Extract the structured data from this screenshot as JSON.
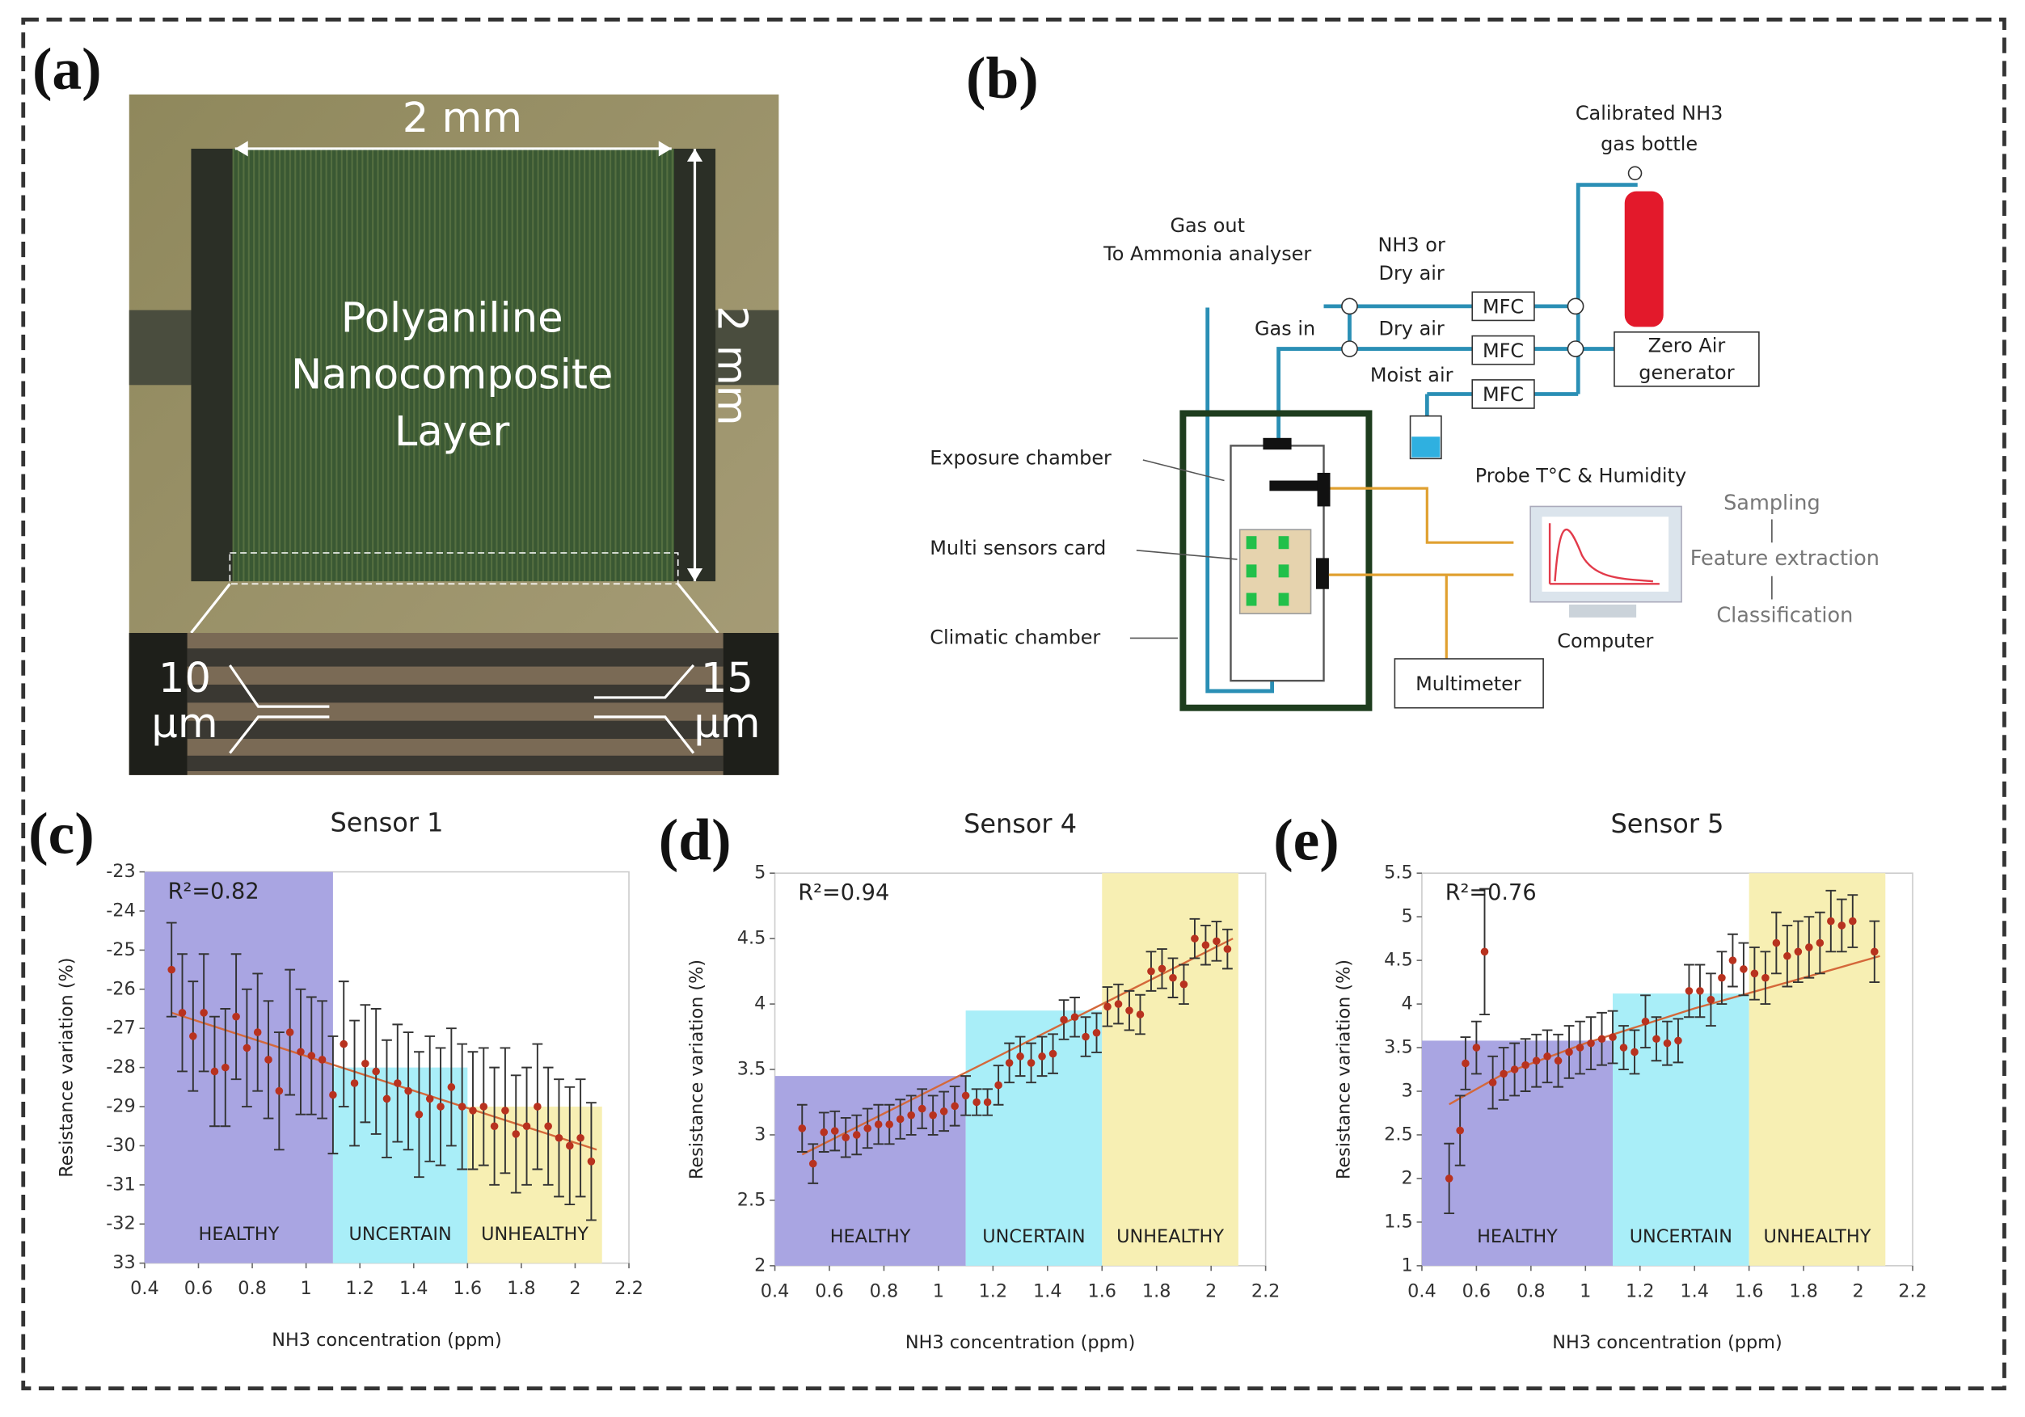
{
  "panel_labels": [
    "(a)",
    "(b)",
    "(c)",
    "(d)",
    "(e)"
  ],
  "photo": {
    "width_label": "2 mm",
    "height_label": "2 mm",
    "layer_label": [
      "Polyaniline",
      "Nanocomposite",
      "Layer"
    ],
    "gap_left": [
      "10",
      "µm"
    ],
    "gap_right": [
      "15",
      "µm"
    ]
  },
  "diagram": {
    "bottle": [
      "Calibrated NH3",
      "gas bottle"
    ],
    "gas_out": [
      "Gas out",
      "To Ammonia analyser"
    ],
    "nh3_dry": [
      "NH3 or",
      "Dry air"
    ],
    "gas_in": "Gas in",
    "dry_air": "Dry air",
    "moist_air": "Moist air",
    "mfc": [
      "MFC",
      "MFC",
      "MFC"
    ],
    "zero_air": [
      "Zero Air",
      "generator"
    ],
    "probe": "Probe T°C & Humidity",
    "exposure": "Exposure chamber",
    "multi": "Multi sensors card",
    "climatic": "Climatic chamber",
    "multimeter": "Multimeter",
    "computer": "Computer",
    "steps": [
      "Sampling",
      "Feature extraction",
      "Classification"
    ]
  },
  "chart_data": [
    {
      "type": "scatter",
      "title": "Sensor 1",
      "x_label": "NH3 concentration (ppm)",
      "y_label": "Resistance variation (%)",
      "annotation": "R²=0.82",
      "xlim": [
        0.4,
        2.2
      ],
      "xticks": [
        0.4,
        0.6,
        0.8,
        1,
        1.2,
        1.4,
        1.6,
        1.8,
        2,
        2.2
      ],
      "ylim": [
        -33,
        -23
      ],
      "yticks": [
        -23,
        -24,
        -25,
        -26,
        -27,
        -28,
        -29,
        -30,
        -31,
        -32,
        {
          "value": -33,
          "label": "33"
        }
      ],
      "regions": [
        {
          "label": "HEALTHY",
          "x": [
            0.4,
            1.1
          ],
          "top": -23,
          "color": "#a9a5e2"
        },
        {
          "label": "UNCERTAIN",
          "x": [
            1.1,
            1.6
          ],
          "top": -28,
          "color": "#a9eef8"
        },
        {
          "label": "UNHEALTHY",
          "x": [
            1.6,
            2.1
          ],
          "top": -29,
          "color": "#f7efb3"
        }
      ],
      "x": [
        0.5,
        0.54,
        0.58,
        0.62,
        0.66,
        0.7,
        0.74,
        0.78,
        0.82,
        0.86,
        0.9,
        0.94,
        0.98,
        1.02,
        1.06,
        1.1,
        1.14,
        1.18,
        1.22,
        1.26,
        1.3,
        1.34,
        1.38,
        1.42,
        1.46,
        1.5,
        1.54,
        1.58,
        1.62,
        1.66,
        1.7,
        1.74,
        1.78,
        1.82,
        1.86,
        1.9,
        1.94,
        1.98,
        2.02,
        2.06
      ],
      "values": [
        -25.5,
        -26.6,
        -27.2,
        -26.6,
        -28.1,
        -28.0,
        -26.7,
        -27.5,
        -27.1,
        -27.8,
        -28.6,
        -27.1,
        -27.6,
        -27.7,
        -27.8,
        -28.7,
        -27.4,
        -28.4,
        -27.9,
        -28.1,
        -28.8,
        -28.4,
        -28.6,
        -29.2,
        -28.8,
        -29.0,
        -28.5,
        -29.0,
        -29.1,
        -29.0,
        -29.5,
        -29.1,
        -29.7,
        -29.5,
        -29.0,
        -29.5,
        -29.8,
        -30.0,
        -29.8,
        -30.4
      ],
      "errors": [
        1.2,
        1.5,
        1.4,
        1.5,
        1.4,
        1.5,
        1.6,
        1.5,
        1.5,
        1.5,
        1.5,
        1.6,
        1.6,
        1.5,
        1.5,
        1.5,
        1.6,
        1.6,
        1.5,
        1.6,
        1.5,
        1.5,
        1.5,
        1.6,
        1.6,
        1.5,
        1.5,
        1.6,
        1.5,
        1.5,
        1.5,
        1.6,
        1.5,
        1.5,
        1.6,
        1.5,
        1.5,
        1.5,
        1.5,
        1.5
      ],
      "color": "#b8321f",
      "error_color": "#333333",
      "trend": {
        "x": [
          0.5,
          2.08
        ],
        "y": [
          -26.6,
          -30.1
        ],
        "color": "#d4683a"
      }
    },
    {
      "type": "scatter",
      "title": "Sensor 4",
      "x_label": "NH3 concentration (ppm)",
      "y_label": "Resistance variation (%)",
      "annotation": "R²=0.94",
      "xlim": [
        0.4,
        2.2
      ],
      "xticks": [
        0.4,
        0.6,
        0.8,
        1,
        1.2,
        1.4,
        1.6,
        1.8,
        2,
        2.2
      ],
      "ylim": [
        2,
        5
      ],
      "yticks": [
        2,
        2.5,
        3,
        3.5,
        4,
        4.5,
        5
      ],
      "regions": [
        {
          "label": "HEALTHY",
          "x": [
            0.4,
            1.1
          ],
          "top": 3.45,
          "color": "#a9a5e2"
        },
        {
          "label": "UNCERTAIN",
          "x": [
            1.1,
            1.6
          ],
          "top": 3.95,
          "color": "#a9eef8"
        },
        {
          "label": "UNHEALTHY",
          "x": [
            1.6,
            2.1
          ],
          "top": 5,
          "color": "#f7efb3"
        }
      ],
      "x": [
        0.5,
        0.54,
        0.58,
        0.62,
        0.66,
        0.7,
        0.74,
        0.78,
        0.82,
        0.86,
        0.9,
        0.94,
        0.98,
        1.02,
        1.06,
        1.1,
        1.14,
        1.18,
        1.22,
        1.26,
        1.3,
        1.34,
        1.38,
        1.42,
        1.46,
        1.5,
        1.54,
        1.58,
        1.62,
        1.66,
        1.7,
        1.74,
        1.78,
        1.82,
        1.86,
        1.9,
        1.94,
        1.98,
        2.02,
        2.06
      ],
      "values": [
        3.05,
        2.78,
        3.02,
        3.03,
        2.98,
        3.0,
        3.05,
        3.08,
        3.08,
        3.12,
        3.15,
        3.2,
        3.15,
        3.18,
        3.22,
        3.3,
        3.25,
        3.25,
        3.38,
        3.55,
        3.6,
        3.55,
        3.6,
        3.62,
        3.88,
        3.9,
        3.75,
        3.78,
        3.98,
        4.0,
        3.95,
        3.92,
        4.25,
        4.27,
        4.2,
        4.15,
        4.5,
        4.45,
        4.48,
        4.42
      ],
      "errors": [
        0.18,
        0.15,
        0.15,
        0.15,
        0.15,
        0.15,
        0.15,
        0.15,
        0.15,
        0.15,
        0.15,
        0.15,
        0.15,
        0.15,
        0.15,
        0.15,
        0.1,
        0.1,
        0.15,
        0.15,
        0.15,
        0.15,
        0.15,
        0.15,
        0.15,
        0.15,
        0.15,
        0.15,
        0.15,
        0.15,
        0.15,
        0.15,
        0.15,
        0.15,
        0.15,
        0.15,
        0.15,
        0.15,
        0.15,
        0.15
      ],
      "color": "#b8321f",
      "error_color": "#333333",
      "trend": {
        "x": [
          0.5,
          2.08
        ],
        "y": [
          2.85,
          4.5
        ],
        "color": "#d4683a"
      }
    },
    {
      "type": "scatter",
      "title": "Sensor 5",
      "x_label": "NH3 concentration (ppm)",
      "y_label": "Resistance variation (%)",
      "annotation": "R²=0.76",
      "xlim": [
        0.4,
        2.2
      ],
      "xticks": [
        0.4,
        0.6,
        0.8,
        1,
        1.2,
        1.4,
        1.6,
        1.8,
        2,
        2.2
      ],
      "ylim": [
        1,
        5.5
      ],
      "yticks": [
        1,
        1.5,
        2,
        2.5,
        3,
        3.5,
        4,
        4.5,
        5,
        5.5
      ],
      "regions": [
        {
          "label": "HEALTHY",
          "x": [
            0.4,
            1.1
          ],
          "top": 3.58,
          "color": "#a9a5e2"
        },
        {
          "label": "UNCERTAIN",
          "x": [
            1.1,
            1.6
          ],
          "top": 4.12,
          "color": "#a9eef8"
        },
        {
          "label": "UNHEALTHY",
          "x": [
            1.6,
            2.1
          ],
          "top": 5.5,
          "color": "#f7efb3"
        }
      ],
      "x": [
        0.5,
        0.54,
        0.56,
        0.6,
        0.63,
        0.66,
        0.7,
        0.74,
        0.78,
        0.82,
        0.86,
        0.9,
        0.94,
        0.98,
        1.02,
        1.06,
        1.1,
        1.14,
        1.18,
        1.22,
        1.26,
        1.3,
        1.34,
        1.38,
        1.42,
        1.46,
        1.5,
        1.54,
        1.58,
        1.62,
        1.66,
        1.7,
        1.74,
        1.78,
        1.82,
        1.86,
        1.9,
        1.94,
        1.98,
        2.06
      ],
      "values": [
        2.0,
        2.55,
        3.32,
        3.5,
        4.6,
        3.1,
        3.2,
        3.25,
        3.3,
        3.35,
        3.4,
        3.35,
        3.45,
        3.5,
        3.55,
        3.6,
        3.62,
        3.5,
        3.45,
        3.8,
        3.6,
        3.55,
        3.58,
        4.15,
        4.15,
        4.05,
        4.3,
        4.5,
        4.4,
        4.35,
        4.3,
        4.7,
        4.55,
        4.6,
        4.65,
        4.7,
        4.95,
        4.9,
        4.95,
        4.6
      ],
      "errors": [
        0.4,
        0.4,
        0.3,
        0.3,
        0.72,
        0.3,
        0.3,
        0.3,
        0.3,
        0.3,
        0.3,
        0.3,
        0.3,
        0.3,
        0.3,
        0.3,
        0.3,
        0.25,
        0.25,
        0.3,
        0.25,
        0.25,
        0.25,
        0.3,
        0.3,
        0.3,
        0.3,
        0.3,
        0.3,
        0.3,
        0.3,
        0.35,
        0.35,
        0.35,
        0.35,
        0.35,
        0.35,
        0.3,
        0.3,
        0.35
      ],
      "color": "#b8321f",
      "error_color": "#333333",
      "trend": {
        "x": [
          0.5,
          0.7,
          1.0,
          1.4,
          1.8,
          2.08
        ],
        "y": [
          2.85,
          3.2,
          3.55,
          3.95,
          4.3,
          4.55
        ],
        "color": "#d4683a"
      }
    }
  ]
}
